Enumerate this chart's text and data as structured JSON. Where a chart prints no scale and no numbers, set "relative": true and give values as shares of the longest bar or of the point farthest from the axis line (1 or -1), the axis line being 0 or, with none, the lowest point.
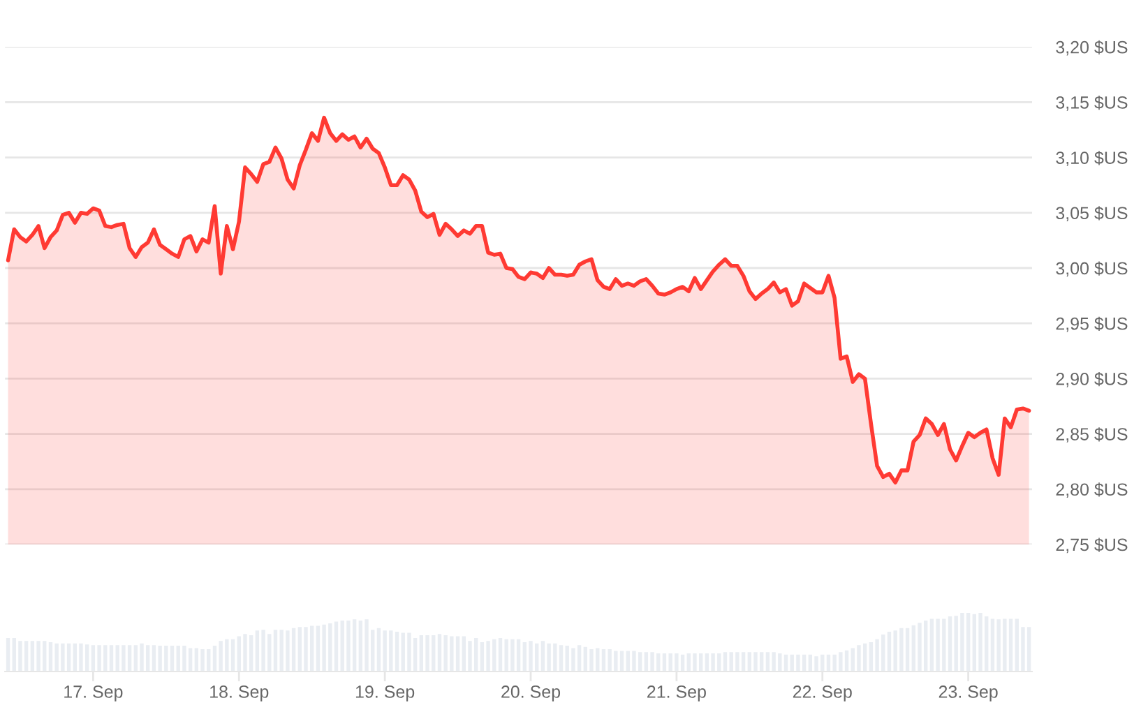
{
  "chart_data": [
    {
      "type": "area",
      "tick_labels": "y",
      "grid": "y",
      "ylim": [
        2.75,
        3.2
      ],
      "yticks": [
        {
          "value": 2.75,
          "label": "2,75 $US"
        },
        {
          "value": 2.8,
          "label": "2,80 $US"
        },
        {
          "value": 2.85,
          "label": "2,85 $US"
        },
        {
          "value": 2.9,
          "label": "2,90 $US"
        },
        {
          "value": 2.95,
          "label": "2,95 $US"
        },
        {
          "value": 3.0,
          "label": "3,00 $US"
        },
        {
          "value": 3.05,
          "label": "3,05 $US"
        },
        {
          "value": 3.1,
          "label": "3,10 $US"
        },
        {
          "value": 3.15,
          "label": "3,15 $US"
        },
        {
          "value": 3.2,
          "label": "3,20 $US"
        }
      ],
      "categories": [
        null,
        null,
        null,
        null,
        null,
        null,
        null,
        null,
        null,
        null,
        null,
        null,
        null,
        null,
        null,
        null,
        null,
        null,
        null,
        null,
        null,
        null,
        null,
        null,
        null,
        null,
        null,
        null,
        null,
        null,
        null,
        null,
        null,
        null,
        null,
        null,
        null,
        null,
        null,
        null,
        null,
        null,
        null,
        null,
        null,
        null,
        null,
        null,
        null,
        null,
        null,
        null,
        null,
        null,
        null,
        null,
        null,
        null,
        null,
        null,
        null,
        null,
        null,
        null,
        null,
        null,
        null,
        null,
        null,
        null,
        null,
        null,
        null,
        null,
        null,
        null,
        null,
        null,
        null,
        null,
        null,
        null,
        null,
        null,
        null,
        null,
        null,
        null,
        null,
        null,
        null,
        null,
        null,
        null,
        null,
        null,
        null,
        null,
        null,
        null,
        null,
        null,
        null,
        null,
        null,
        null,
        null,
        null,
        null,
        null,
        null,
        null,
        null,
        null,
        null,
        null,
        null,
        null,
        null,
        null,
        null,
        null,
        null,
        null,
        null,
        null,
        null,
        null,
        null,
        null,
        null,
        null,
        null,
        null,
        null,
        null,
        null,
        null,
        null,
        null,
        null,
        null,
        null,
        null,
        null,
        null,
        null,
        null,
        null,
        null,
        null,
        null,
        null,
        null,
        null,
        null,
        null,
        null,
        null,
        null,
        null,
        null,
        null,
        null,
        null,
        null,
        null,
        null,
        null
      ],
      "series": [
        {
          "color": "#ff3a33",
          "values": [
            3.007,
            3.035,
            3.028,
            3.024,
            3.03,
            3.038,
            3.018,
            3.028,
            3.034,
            3.048,
            3.05,
            3.041,
            3.05,
            3.049,
            3.054,
            3.052,
            3.038,
            3.037,
            3.039,
            3.04,
            3.018,
            3.01,
            3.019,
            3.023,
            3.035,
            3.021,
            3.017,
            3.013,
            3.01,
            3.026,
            3.029,
            3.015,
            3.026,
            3.023,
            3.056,
            2.995,
            3.038,
            3.017,
            3.042,
            3.091,
            3.085,
            3.078,
            3.094,
            3.096,
            3.109,
            3.099,
            3.08,
            3.072,
            3.093,
            3.107,
            3.122,
            3.115,
            3.136,
            3.122,
            3.115,
            3.121,
            3.116,
            3.119,
            3.109,
            3.117,
            3.108,
            3.104,
            3.091,
            3.075,
            3.075,
            3.084,
            3.08,
            3.07,
            3.051,
            3.046,
            3.049,
            3.03,
            3.04,
            3.035,
            3.029,
            3.034,
            3.031,
            3.038,
            3.038,
            3.014,
            3.012,
            3.013,
            3.0,
            2.999,
            2.992,
            2.99,
            2.996,
            2.995,
            2.991,
            3.0,
            2.994,
            2.994,
            2.993,
            2.994,
            3.003,
            3.006,
            3.008,
            2.989,
            2.983,
            2.981,
            2.99,
            2.984,
            2.986,
            2.984,
            2.988,
            2.99,
            2.984,
            2.977,
            2.976,
            2.978,
            2.981,
            2.983,
            2.979,
            2.991,
            2.981,
            2.989,
            2.997,
            3.003,
            3.008,
            3.002,
            3.002,
            2.993,
            2.979,
            2.972,
            2.977,
            2.981,
            2.987,
            2.978,
            2.981,
            2.966,
            2.97,
            2.986,
            2.982,
            2.978,
            2.978,
            2.993,
            2.973,
            2.918,
            2.92,
            2.897,
            2.904,
            2.9,
            2.859,
            2.821,
            2.811,
            2.814,
            2.806,
            2.817,
            2.817,
            2.843,
            2.849,
            2.864,
            2.859,
            2.849,
            2.859,
            2.836,
            2.826,
            2.839,
            2.851,
            2.847,
            2.851,
            2.854,
            2.828,
            2.813,
            2.864,
            2.856,
            2.872,
            2.873,
            2.871
          ]
        }
      ]
    },
    {
      "type": "bar",
      "relative": true,
      "tick_labels": "x",
      "categories": [
        null,
        null,
        null,
        null,
        null,
        null,
        null,
        null,
        null,
        null,
        null,
        null,
        null,
        null,
        "17. Sep",
        null,
        null,
        null,
        null,
        null,
        null,
        null,
        null,
        null,
        null,
        null,
        null,
        null,
        null,
        null,
        null,
        null,
        null,
        null,
        null,
        null,
        null,
        null,
        "18. Sep",
        null,
        null,
        null,
        null,
        null,
        null,
        null,
        null,
        null,
        null,
        null,
        null,
        null,
        null,
        null,
        null,
        null,
        null,
        null,
        null,
        null,
        null,
        null,
        "19. Sep",
        null,
        null,
        null,
        null,
        null,
        null,
        null,
        null,
        null,
        null,
        null,
        null,
        null,
        null,
        null,
        null,
        null,
        null,
        null,
        null,
        null,
        null,
        null,
        "20. Sep",
        null,
        null,
        null,
        null,
        null,
        null,
        null,
        null,
        null,
        null,
        null,
        null,
        null,
        null,
        null,
        null,
        null,
        null,
        null,
        null,
        null,
        null,
        null,
        "21. Sep",
        null,
        null,
        null,
        null,
        null,
        null,
        null,
        null,
        null,
        null,
        null,
        null,
        null,
        null,
        null,
        null,
        null,
        null,
        null,
        null,
        null,
        null,
        null,
        "22. Sep",
        null,
        null,
        null,
        null,
        null,
        null,
        null,
        null,
        null,
        null,
        null,
        null,
        null,
        null,
        null,
        null,
        null,
        null,
        null,
        null,
        null,
        null,
        null,
        "23. Sep",
        null,
        null,
        null,
        null,
        null,
        null,
        null,
        null,
        null,
        null
      ],
      "series": [
        {
          "color": "#e9edf2",
          "values": [
            0.57,
            0.57,
            0.52,
            0.52,
            0.52,
            0.52,
            0.52,
            0.5,
            0.48,
            0.48,
            0.48,
            0.48,
            0.48,
            0.46,
            0.45,
            0.45,
            0.45,
            0.45,
            0.45,
            0.45,
            0.45,
            0.45,
            0.48,
            0.45,
            0.45,
            0.44,
            0.44,
            0.44,
            0.44,
            0.44,
            0.4,
            0.4,
            0.38,
            0.38,
            0.44,
            0.52,
            0.55,
            0.55,
            0.6,
            0.64,
            0.62,
            0.7,
            0.71,
            0.64,
            0.71,
            0.71,
            0.7,
            0.74,
            0.76,
            0.76,
            0.78,
            0.78,
            0.8,
            0.82,
            0.85,
            0.87,
            0.87,
            0.89,
            0.87,
            0.89,
            0.71,
            0.74,
            0.7,
            0.7,
            0.68,
            0.66,
            0.66,
            0.57,
            0.62,
            0.62,
            0.62,
            0.64,
            0.62,
            0.6,
            0.6,
            0.6,
            0.52,
            0.57,
            0.5,
            0.52,
            0.55,
            0.57,
            0.55,
            0.55,
            0.55,
            0.5,
            0.52,
            0.48,
            0.52,
            0.48,
            0.48,
            0.45,
            0.44,
            0.4,
            0.45,
            0.42,
            0.38,
            0.4,
            0.38,
            0.38,
            0.35,
            0.35,
            0.35,
            0.35,
            0.33,
            0.33,
            0.33,
            0.31,
            0.31,
            0.31,
            0.31,
            0.29,
            0.31,
            0.31,
            0.31,
            0.31,
            0.31,
            0.31,
            0.33,
            0.33,
            0.33,
            0.33,
            0.33,
            0.33,
            0.33,
            0.33,
            0.33,
            0.31,
            0.29,
            0.29,
            0.29,
            0.29,
            0.29,
            0.26,
            0.29,
            0.29,
            0.29,
            0.33,
            0.36,
            0.4,
            0.45,
            0.48,
            0.5,
            0.55,
            0.63,
            0.68,
            0.7,
            0.74,
            0.74,
            0.79,
            0.83,
            0.87,
            0.9,
            0.9,
            0.9,
            0.94,
            0.95,
            1,
            1,
            0.98,
            1,
            0.94,
            0.9,
            0.89,
            0.9,
            0.9,
            0.9,
            0.76,
            0.76
          ]
        }
      ]
    }
  ]
}
